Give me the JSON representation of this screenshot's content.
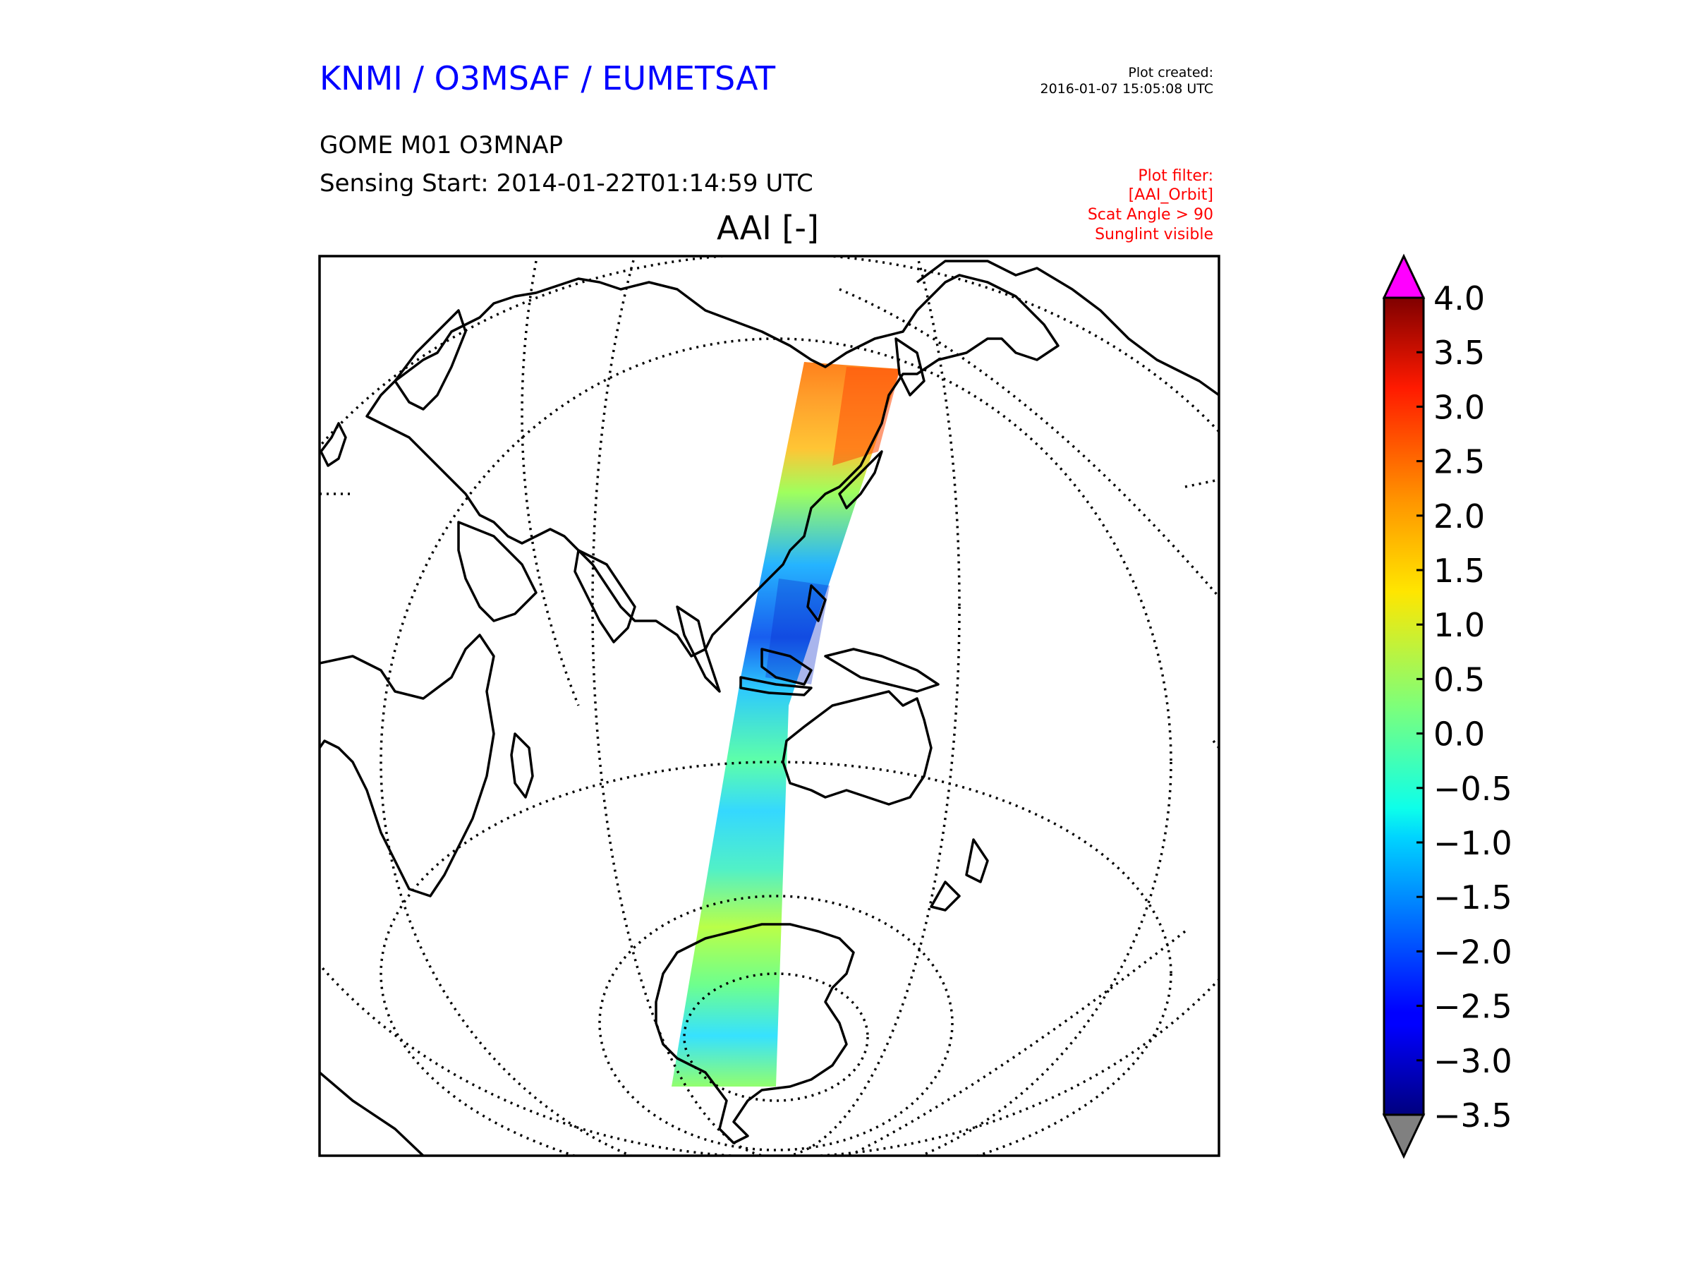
{
  "header": {
    "org_title": "KNMI / O3MSAF / EUMETSAT",
    "product": "GOME M01 O3MNAP",
    "sensing_start": "Sensing Start: 2014-01-22T01:14:59 UTC",
    "plot_created_label": "Plot created:",
    "plot_created_date": "2016-01-07 15:05:08 UTC",
    "filter_lines": [
      "Plot filter:",
      "[AAI_Orbit]",
      "Scat Angle > 90",
      "Sunglint visible"
    ]
  },
  "map": {
    "title": "AAI [-]",
    "projection": "orthographic",
    "swath": "single descending orbit swath from NE Asia to Antarctica",
    "graticule": "dotted"
  },
  "colorbar": {
    "min": -3.5,
    "max": 4.0,
    "tick_labels": [
      "4.0",
      "3.5",
      "3.0",
      "2.5",
      "2.0",
      "1.5",
      "1.0",
      "0.5",
      "0.0",
      "−0.5",
      "−1.0",
      "−1.5",
      "−2.0",
      "−2.5",
      "−3.0",
      "−3.5"
    ],
    "extend_max_color": "#ff00ff",
    "extend_min_color": "#808080",
    "colormap": "jet"
  }
}
